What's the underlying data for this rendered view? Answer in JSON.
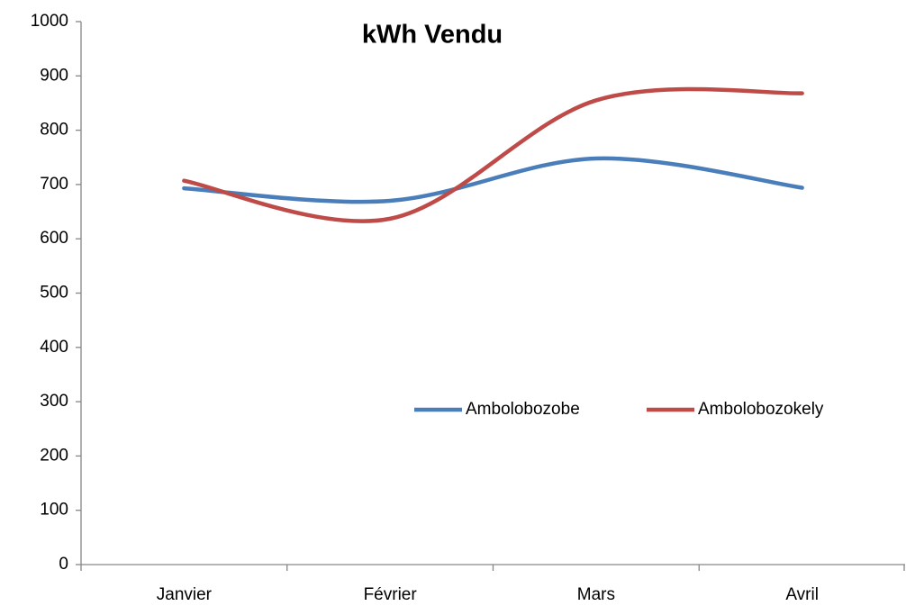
{
  "chart_data": {
    "type": "line",
    "title": "kWh Vendu",
    "categories": [
      "Janvier",
      "Février",
      "Mars",
      "Avril"
    ],
    "series": [
      {
        "name": "Ambolobozobe",
        "color": "#4a7ebb",
        "values": [
          693,
          670,
          748,
          694
        ]
      },
      {
        "name": "Ambolobozokely",
        "color": "#be4b48",
        "values": [
          707,
          637,
          855,
          868
        ]
      }
    ],
    "ylim": [
      0,
      1000
    ],
    "yticks": [
      0,
      100,
      200,
      300,
      400,
      500,
      600,
      700,
      800,
      900,
      1000
    ],
    "smooth": true,
    "grid": false
  }
}
